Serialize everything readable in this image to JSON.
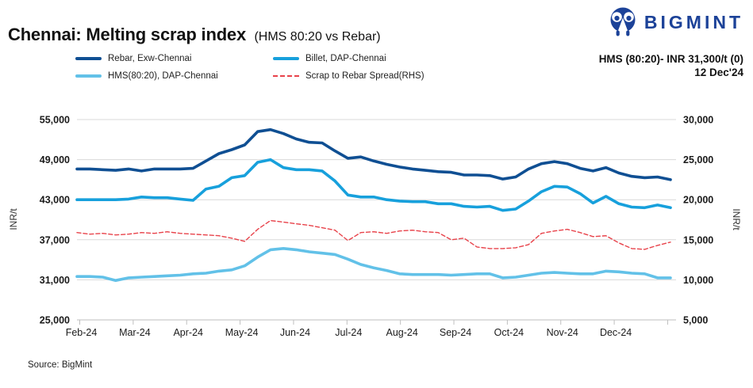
{
  "header": {
    "title": "Chennai: Melting scrap index",
    "subtitle": "(HMS 80:20 vs Rebar)"
  },
  "logo": {
    "text": "BIGMINT",
    "color": "#1c4298"
  },
  "annotation": {
    "line1": "HMS (80:20)- INR 31,300/t (0)",
    "line2": "12 Dec'24"
  },
  "source": "Source: BigMint",
  "chart_data": {
    "type": "line",
    "title": "Chennai: Melting scrap index (HMS 80:20 vs Rebar)",
    "legend_position": "top",
    "grid": true,
    "grid_color": "#d9d9d9",
    "axis_color": "#bfbfbf",
    "x_labels": [
      "Feb-24",
      "Mar-24",
      "Apr-24",
      "May-24",
      "Jun-24",
      "Jul-24",
      "Aug-24",
      "Sep-24",
      "Oct-24",
      "Nov-24",
      "Dec-24"
    ],
    "left_axis": {
      "label": "INR/t",
      "min": 25000,
      "max": 55000,
      "tick_values": [
        25000,
        31000,
        37000,
        43000,
        49000,
        55000
      ],
      "tick_labels": [
        "25,000",
        "31,000",
        "37,000",
        "43,000",
        "49,000",
        "55,000"
      ]
    },
    "right_axis": {
      "label": "INR/t",
      "min": 5000,
      "max": 30000,
      "tick_values": [
        5000,
        10000,
        15000,
        20000,
        25000,
        30000
      ],
      "tick_labels": [
        "5,000",
        "10,000",
        "15,000",
        "20,000",
        "25,000",
        "30,000"
      ]
    },
    "series": [
      {
        "id": "rebar",
        "name": "Rebar, Exw-Chennai",
        "axis": "left",
        "color": "#0f4f93",
        "line_style": "solid",
        "values": [
          47600,
          47600,
          47500,
          47400,
          47600,
          47300,
          47600,
          47600,
          47600,
          47700,
          48800,
          49900,
          50500,
          51200,
          53200,
          53500,
          52900,
          52100,
          51600,
          51500,
          50300,
          49200,
          49400,
          48800,
          48300,
          47900,
          47600,
          47400,
          47200,
          47100,
          46700,
          46700,
          46600,
          46100,
          46400,
          47600,
          48400,
          48700,
          48400,
          47700,
          47300,
          47800,
          47000,
          46500,
          46300,
          46400,
          46000
        ]
      },
      {
        "id": "billet",
        "name": "Billet, DAP-Chennai",
        "axis": "left",
        "color": "#17a0dc",
        "line_style": "solid",
        "values": [
          43000,
          43000,
          43000,
          43000,
          43100,
          43400,
          43300,
          43300,
          43100,
          42900,
          44600,
          45000,
          46300,
          46600,
          48600,
          49000,
          47800,
          47500,
          47500,
          47300,
          45800,
          43700,
          43400,
          43400,
          43000,
          42800,
          42700,
          42700,
          42400,
          42400,
          42000,
          41900,
          42000,
          41400,
          41600,
          42800,
          44200,
          45000,
          44900,
          43900,
          42500,
          43500,
          42400,
          41900,
          41800,
          42200,
          41800
        ]
      },
      {
        "id": "hms",
        "name": "HMS(80:20), DAP-Chennai",
        "axis": "left",
        "color": "#62c1e8",
        "line_style": "solid",
        "values": [
          31500,
          31500,
          31400,
          30900,
          31300,
          31400,
          31500,
          31600,
          31700,
          31900,
          32000,
          32300,
          32500,
          33100,
          34400,
          35500,
          35700,
          35500,
          35200,
          35000,
          34800,
          34100,
          33300,
          32800,
          32400,
          31900,
          31800,
          31800,
          31800,
          31700,
          31800,
          31900,
          31900,
          31300,
          31400,
          31700,
          32000,
          32100,
          32000,
          31900,
          31900,
          32300,
          32200,
          32000,
          31900,
          31300,
          31300
        ]
      },
      {
        "id": "spread",
        "name": "Scrap to Rebar Spread(RHS)",
        "axis": "right",
        "color": "#e8424a",
        "line_style": "dashed",
        "values": [
          15900,
          15700,
          15800,
          15600,
          15700,
          15900,
          15800,
          16000,
          15800,
          15700,
          15600,
          15500,
          15200,
          14800,
          16300,
          17400,
          17200,
          17000,
          16800,
          16500,
          16200,
          14900,
          15900,
          16000,
          15800,
          16100,
          16200,
          16000,
          15900,
          15000,
          15200,
          14100,
          13900,
          13900,
          14000,
          14400,
          15800,
          16100,
          16300,
          15900,
          15400,
          15500,
          14600,
          13900,
          13800,
          14300,
          14700
        ]
      }
    ]
  }
}
